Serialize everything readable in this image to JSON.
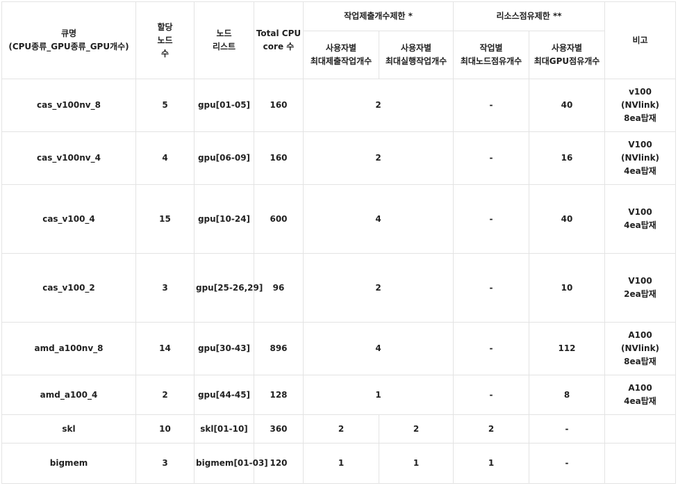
{
  "headers": {
    "queue_name": "큐명\n(CPU종류_GPU종류_GPU개수)",
    "assigned_nodes": "할당\n노드\n수",
    "node_list": "노드\n리스트",
    "total_cpu": "Total CPU\ncore 수",
    "job_limit_group": "작업제출개수제한 *",
    "resource_limit_group": "리소스점유제한 **",
    "note": "비고",
    "max_submit_per_user": "사용자별\n최대제출작업개수",
    "max_run_per_user": "사용자별\n최대실행작업개수",
    "max_nodes_per_job": "작업별\n최대노드점유개수",
    "max_gpu_per_user": "사용자별\n최대GPU점유개수"
  },
  "rows": [
    {
      "queue": "cas_v100nv_8",
      "nodes": "5",
      "node_list": "gpu[01-05]",
      "cpu_cores": "160",
      "job_limit": "2",
      "max_nodes": "-",
      "max_gpu": "40",
      "note": "v100\n(NVlink)\n8ea탑재"
    },
    {
      "queue": "cas_v100nv_4",
      "nodes": "4",
      "node_list": "gpu[06-09]",
      "cpu_cores": "160",
      "job_limit": "2",
      "max_nodes": "-",
      "max_gpu": "16",
      "note": "V100\n(NVlink)\n4ea탑재"
    },
    {
      "queue": "cas_v100_4",
      "nodes": "15",
      "node_list": "gpu[10-24]",
      "cpu_cores": "600",
      "job_limit": "4",
      "max_nodes": "-",
      "max_gpu": "40",
      "note": "V100\n4ea탑재"
    },
    {
      "queue": "cas_v100_2",
      "nodes": "3",
      "node_list": "gpu[25-26,29]",
      "cpu_cores": "96",
      "job_limit": "2",
      "max_nodes": "-",
      "max_gpu": "10",
      "note": "V100\n2ea탑재"
    },
    {
      "queue": "amd_a100nv_8",
      "nodes": "14",
      "node_list": "gpu[30-43]",
      "cpu_cores": "896",
      "job_limit": "4",
      "max_nodes": "-",
      "max_gpu": "112",
      "note": "A100\n(NVlink)\n8ea탑재"
    },
    {
      "queue": "amd_a100_4",
      "nodes": "2",
      "node_list": "gpu[44-45]",
      "cpu_cores": "128",
      "job_limit": "1",
      "max_nodes": "-",
      "max_gpu": "8",
      "note": "A100\n4ea탑재"
    },
    {
      "queue": "skl",
      "nodes": "10",
      "node_list": "skl[01-10]",
      "cpu_cores": "360",
      "max_submit": "2",
      "max_run": "2",
      "max_nodes": "2",
      "max_gpu": "-",
      "note": ""
    },
    {
      "queue": "bigmem",
      "nodes": "3",
      "node_list": "bigmem[01-03]",
      "cpu_cores": "120",
      "max_submit": "1",
      "max_run": "1",
      "max_nodes": "1",
      "max_gpu": "-",
      "note": ""
    }
  ]
}
